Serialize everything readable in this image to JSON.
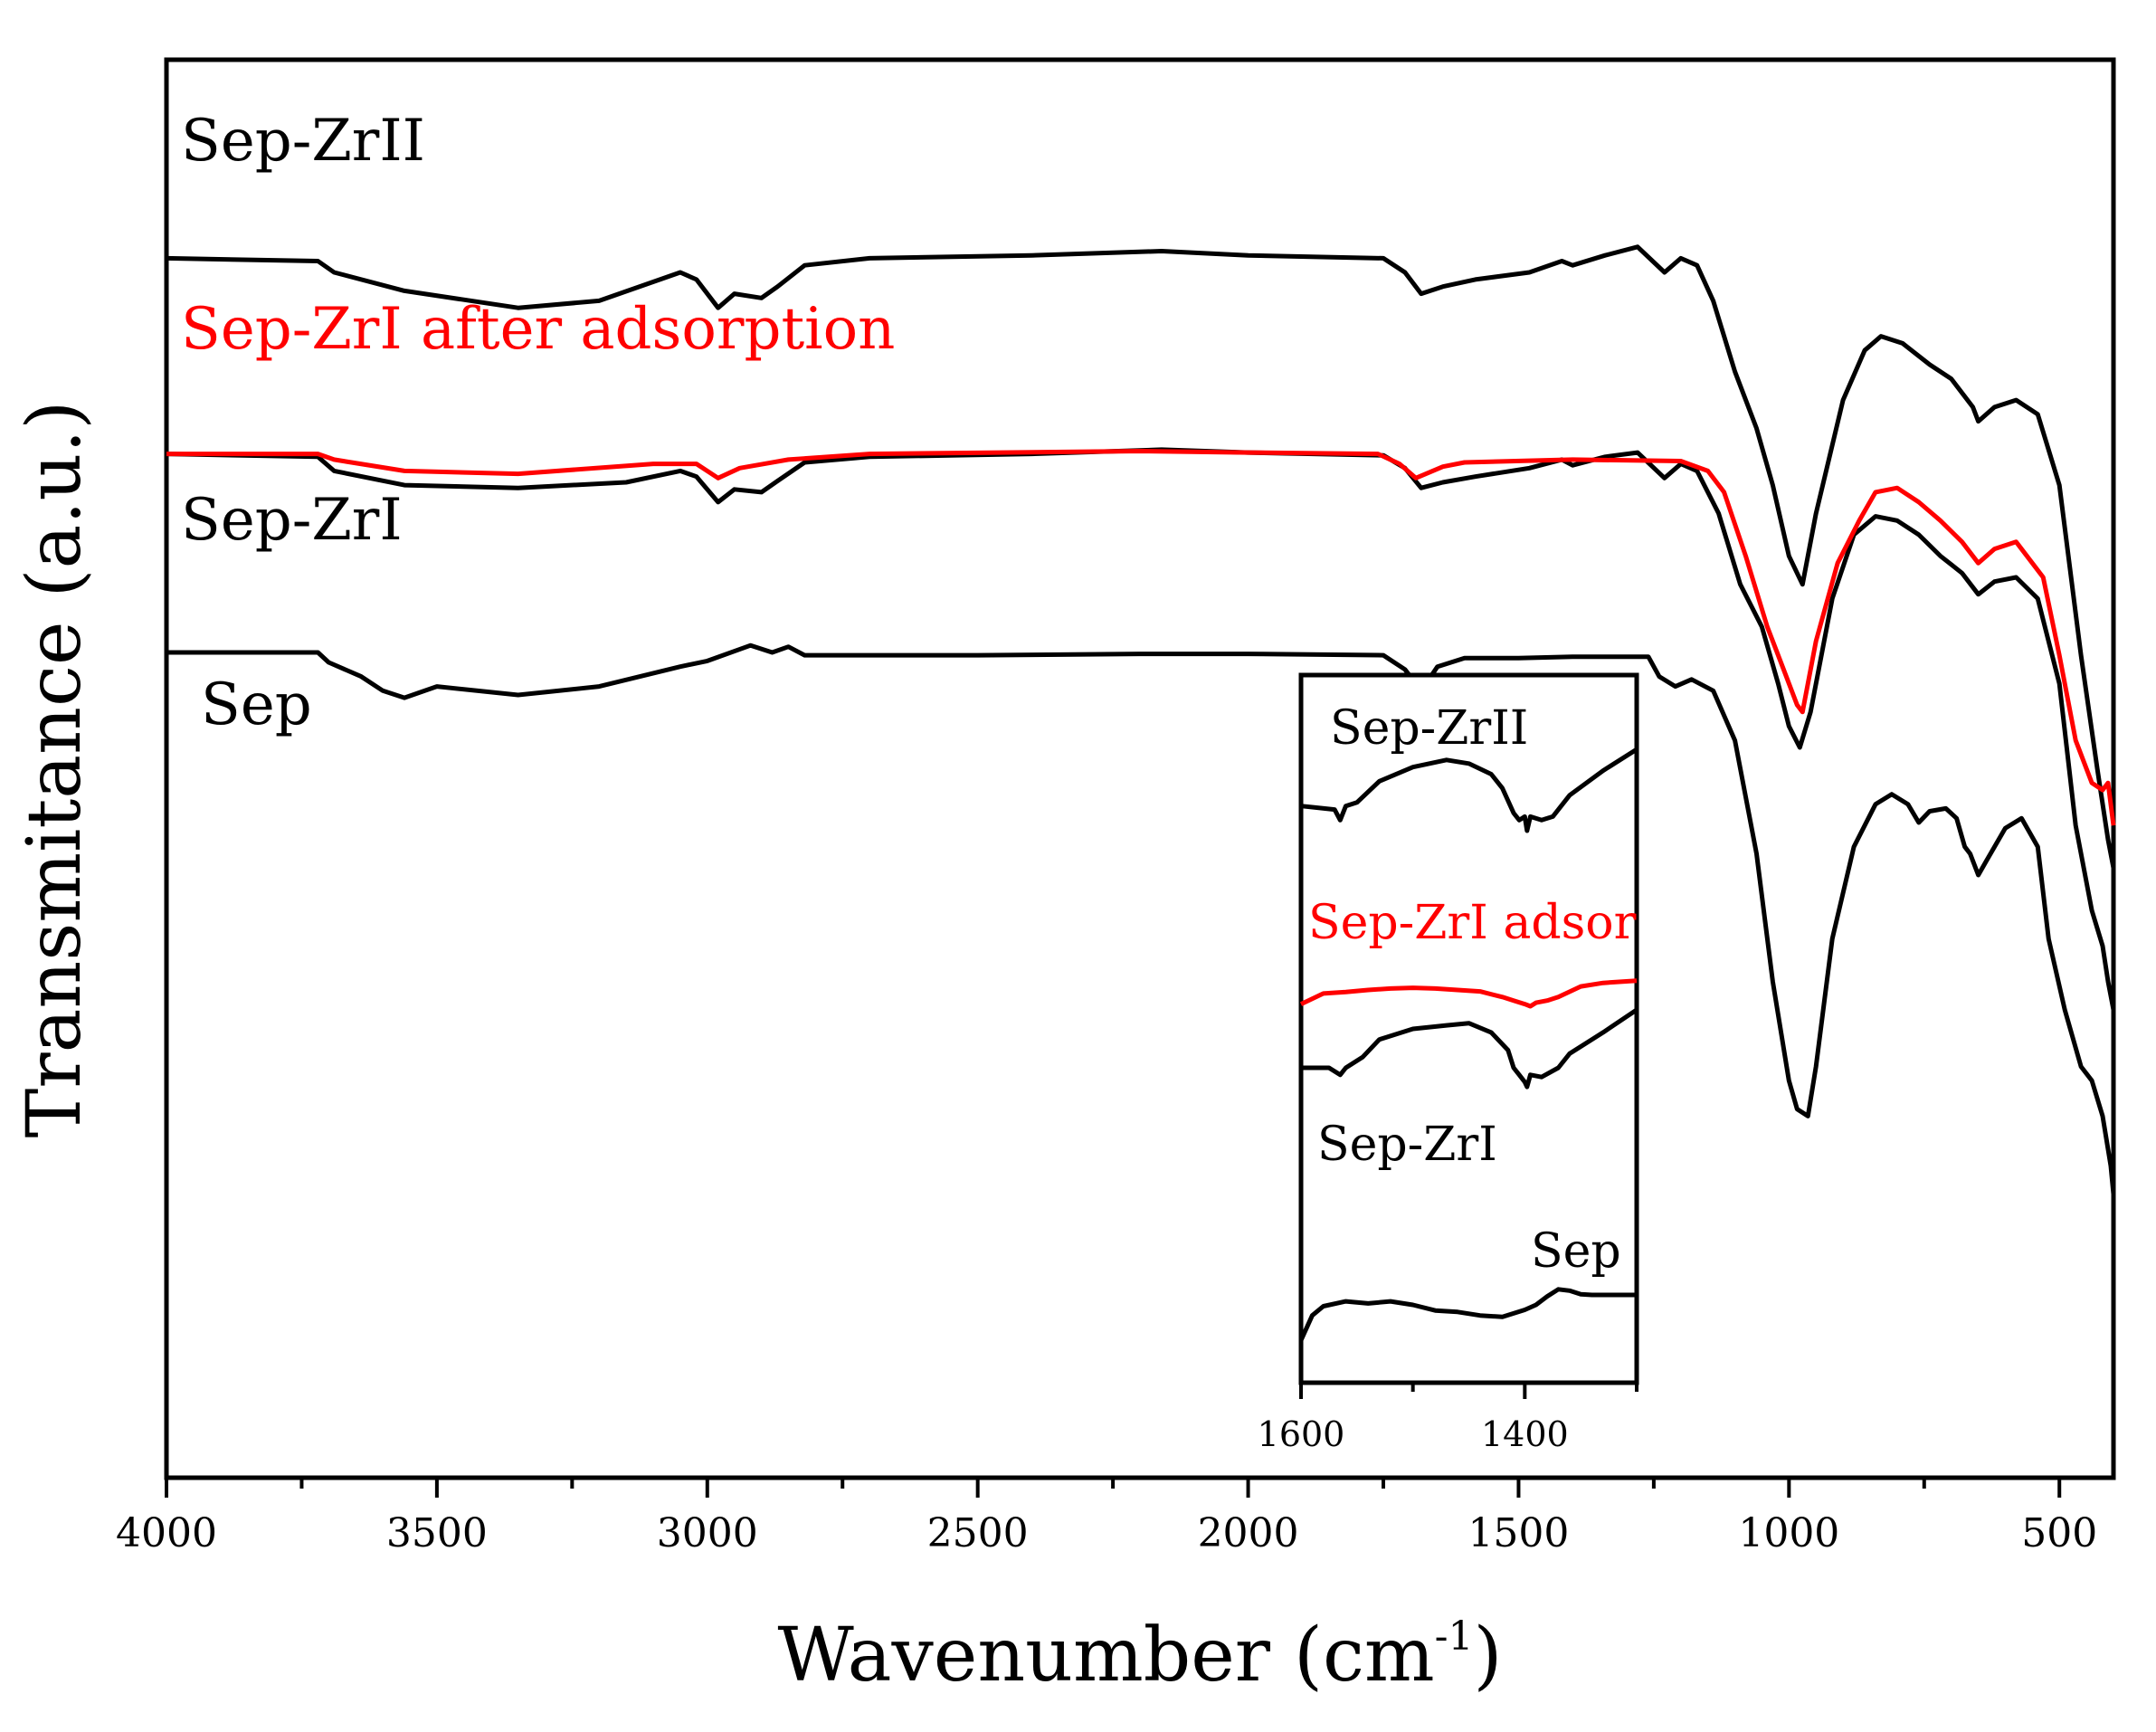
{
  "chart_data": {
    "type": "line",
    "title": "",
    "xlabel": "Wavenumber (cm",
    "xlabel_sup": "-1",
    "xlabel_close": ")",
    "ylabel": "Transmitance (a.u.)",
    "xlim": [
      4000,
      400
    ],
    "x_reversed": true,
    "y_ticks_shown": false,
    "ylim": [
      0,
      100
    ],
    "x_ticks": [
      4000,
      3500,
      3000,
      2500,
      2000,
      1500,
      1000,
      500
    ],
    "x_tick_labels": [
      "4000",
      "3500",
      "3000",
      "2500",
      "2000",
      "1500",
      "1000",
      "500"
    ],
    "colors": {
      "black": "#000000",
      "red": "#ff0000"
    },
    "series": [
      {
        "name": "Sep-ZrII",
        "color": "#000000",
        "points": [
          [
            4000,
            86
          ],
          [
            3720,
            85.8
          ],
          [
            3690,
            85
          ],
          [
            3560,
            83.7
          ],
          [
            3350,
            82.5
          ],
          [
            3200,
            83
          ],
          [
            3050,
            85
          ],
          [
            3020,
            84.5
          ],
          [
            2980,
            82.5
          ],
          [
            2950,
            83.5
          ],
          [
            2900,
            83.2
          ],
          [
            2870,
            84
          ],
          [
            2820,
            85.5
          ],
          [
            2700,
            86
          ],
          [
            2400,
            86.2
          ],
          [
            2160,
            86.5
          ],
          [
            2000,
            86.2
          ],
          [
            1750,
            86
          ],
          [
            1710,
            85
          ],
          [
            1680,
            83.5
          ],
          [
            1640,
            84
          ],
          [
            1580,
            84.5
          ],
          [
            1480,
            85
          ],
          [
            1420,
            85.8
          ],
          [
            1400,
            85.5
          ],
          [
            1340,
            86.2
          ],
          [
            1280,
            86.8
          ],
          [
            1230,
            85
          ],
          [
            1200,
            86
          ],
          [
            1170,
            85.5
          ],
          [
            1140,
            83
          ],
          [
            1100,
            78
          ],
          [
            1060,
            74
          ],
          [
            1030,
            70
          ],
          [
            1000,
            65
          ],
          [
            975,
            63
          ],
          [
            950,
            68
          ],
          [
            900,
            76
          ],
          [
            860,
            79.5
          ],
          [
            830,
            80.5
          ],
          [
            790,
            80
          ],
          [
            740,
            78.5
          ],
          [
            700,
            77.5
          ],
          [
            660,
            75.5
          ],
          [
            650,
            74.5
          ],
          [
            620,
            75.5
          ],
          [
            580,
            76
          ],
          [
            540,
            75
          ],
          [
            500,
            70
          ],
          [
            460,
            58
          ],
          [
            430,
            50
          ],
          [
            410,
            45
          ],
          [
            400,
            43
          ]
        ]
      },
      {
        "name": "Sep-ZrI after adsorption",
        "color": "#ff0000",
        "points": [
          [
            4000,
            72.2
          ],
          [
            3720,
            72.2
          ],
          [
            3690,
            71.8
          ],
          [
            3560,
            71
          ],
          [
            3350,
            70.8
          ],
          [
            3100,
            71.5
          ],
          [
            3020,
            71.5
          ],
          [
            2980,
            70.5
          ],
          [
            2940,
            71.2
          ],
          [
            2850,
            71.8
          ],
          [
            2700,
            72.2
          ],
          [
            2200,
            72.4
          ],
          [
            2000,
            72.3
          ],
          [
            1760,
            72.2
          ],
          [
            1720,
            71.5
          ],
          [
            1690,
            70.5
          ],
          [
            1640,
            71.3
          ],
          [
            1600,
            71.6
          ],
          [
            1400,
            71.8
          ],
          [
            1200,
            71.7
          ],
          [
            1150,
            71
          ],
          [
            1120,
            69.5
          ],
          [
            1080,
            65
          ],
          [
            1040,
            60
          ],
          [
            1010,
            57
          ],
          [
            985,
            54.5
          ],
          [
            975,
            54
          ],
          [
            950,
            59
          ],
          [
            910,
            64.5
          ],
          [
            870,
            67.5
          ],
          [
            840,
            69.5
          ],
          [
            800,
            69.8
          ],
          [
            760,
            68.8
          ],
          [
            720,
            67.5
          ],
          [
            680,
            66
          ],
          [
            650,
            64.5
          ],
          [
            620,
            65.5
          ],
          [
            580,
            66
          ],
          [
            530,
            63.5
          ],
          [
            500,
            58
          ],
          [
            470,
            52
          ],
          [
            440,
            49
          ],
          [
            420,
            48.5
          ],
          [
            410,
            49
          ],
          [
            400,
            46
          ]
        ]
      },
      {
        "name": "Sep-ZrI",
        "color": "#000000",
        "points": [
          [
            4000,
            72.2
          ],
          [
            3720,
            72
          ],
          [
            3690,
            71
          ],
          [
            3560,
            70
          ],
          [
            3350,
            69.8
          ],
          [
            3150,
            70.2
          ],
          [
            3050,
            71
          ],
          [
            3020,
            70.6
          ],
          [
            2980,
            68.8
          ],
          [
            2950,
            69.7
          ],
          [
            2900,
            69.5
          ],
          [
            2870,
            70.3
          ],
          [
            2820,
            71.6
          ],
          [
            2700,
            72
          ],
          [
            2400,
            72.2
          ],
          [
            2160,
            72.5
          ],
          [
            2000,
            72.3
          ],
          [
            1750,
            72.1
          ],
          [
            1710,
            71.2
          ],
          [
            1680,
            69.8
          ],
          [
            1640,
            70.2
          ],
          [
            1580,
            70.6
          ],
          [
            1480,
            71.2
          ],
          [
            1420,
            71.8
          ],
          [
            1400,
            71.4
          ],
          [
            1340,
            72
          ],
          [
            1280,
            72.3
          ],
          [
            1230,
            70.5
          ],
          [
            1200,
            71.5
          ],
          [
            1170,
            71
          ],
          [
            1130,
            68
          ],
          [
            1090,
            63
          ],
          [
            1050,
            60
          ],
          [
            1020,
            56
          ],
          [
            1000,
            53
          ],
          [
            980,
            51.5
          ],
          [
            960,
            54
          ],
          [
            920,
            62
          ],
          [
            880,
            66.5
          ],
          [
            840,
            67.8
          ],
          [
            800,
            67.5
          ],
          [
            760,
            66.5
          ],
          [
            720,
            65
          ],
          [
            680,
            63.8
          ],
          [
            650,
            62.3
          ],
          [
            620,
            63.2
          ],
          [
            580,
            63.5
          ],
          [
            540,
            62
          ],
          [
            500,
            56
          ],
          [
            470,
            46
          ],
          [
            440,
            40
          ],
          [
            420,
            37.5
          ],
          [
            410,
            35
          ],
          [
            400,
            33
          ]
        ]
      },
      {
        "name": "Sep",
        "color": "#000000",
        "points": [
          [
            4000,
            58.2
          ],
          [
            3720,
            58.2
          ],
          [
            3700,
            57.5
          ],
          [
            3640,
            56.5
          ],
          [
            3600,
            55.5
          ],
          [
            3560,
            55
          ],
          [
            3500,
            55.8
          ],
          [
            3350,
            55.2
          ],
          [
            3200,
            55.8
          ],
          [
            3050,
            57.2
          ],
          [
            3000,
            57.6
          ],
          [
            2920,
            58.7
          ],
          [
            2880,
            58.2
          ],
          [
            2850,
            58.6
          ],
          [
            2820,
            58
          ],
          [
            2500,
            58
          ],
          [
            2200,
            58.1
          ],
          [
            2000,
            58.1
          ],
          [
            1750,
            58
          ],
          [
            1710,
            57
          ],
          [
            1680,
            55.5
          ],
          [
            1650,
            57.2
          ],
          [
            1600,
            57.8
          ],
          [
            1500,
            57.8
          ],
          [
            1400,
            57.9
          ],
          [
            1260,
            57.9
          ],
          [
            1240,
            56.5
          ],
          [
            1210,
            55.8
          ],
          [
            1180,
            56.3
          ],
          [
            1140,
            55.5
          ],
          [
            1100,
            52
          ],
          [
            1060,
            44
          ],
          [
            1030,
            35
          ],
          [
            1000,
            28
          ],
          [
            985,
            26
          ],
          [
            965,
            25.5
          ],
          [
            950,
            29
          ],
          [
            920,
            38
          ],
          [
            880,
            44.5
          ],
          [
            840,
            47.5
          ],
          [
            810,
            48.2
          ],
          [
            780,
            47.5
          ],
          [
            760,
            46.2
          ],
          [
            740,
            47
          ],
          [
            710,
            47.2
          ],
          [
            690,
            46.5
          ],
          [
            675,
            44.5
          ],
          [
            665,
            44
          ],
          [
            650,
            42.5
          ],
          [
            635,
            43.5
          ],
          [
            600,
            45.8
          ],
          [
            570,
            46.5
          ],
          [
            540,
            44.5
          ],
          [
            520,
            38
          ],
          [
            490,
            33
          ],
          [
            460,
            29
          ],
          [
            440,
            28
          ],
          [
            420,
            25.5
          ],
          [
            405,
            22
          ],
          [
            400,
            20
          ]
        ]
      }
    ],
    "series_labels": [
      "Sep-ZrII",
      "Sep-ZrI after adsorption",
      "Sep-ZrI",
      "Sep"
    ],
    "inset": {
      "xlim": [
        1600,
        1300
      ],
      "x_ticks": [
        1600,
        1400
      ],
      "x_tick_labels": [
        "1600",
        "1400"
      ],
      "ylim": [
        0,
        100
      ],
      "series": [
        {
          "name": "Sep-ZrII",
          "color": "#000000",
          "points": [
            [
              1600,
              81.5
            ],
            [
              1570,
              81
            ],
            [
              1565,
              79.5
            ],
            [
              1560,
              81.5
            ],
            [
              1550,
              82
            ],
            [
              1530,
              85
            ],
            [
              1500,
              87
            ],
            [
              1470,
              88
            ],
            [
              1450,
              87.5
            ],
            [
              1430,
              86
            ],
            [
              1420,
              84
            ],
            [
              1410,
              80.5
            ],
            [
              1405,
              79.5
            ],
            [
              1400,
              80
            ],
            [
              1398,
              78
            ],
            [
              1395,
              80
            ],
            [
              1385,
              79.5
            ],
            [
              1375,
              80
            ],
            [
              1360,
              83
            ],
            [
              1330,
              86.5
            ],
            [
              1300,
              89.5
            ]
          ]
        },
        {
          "name": "Sep-ZrI adsor",
          "color": "#ff0000",
          "points": [
            [
              1600,
              53.5
            ],
            [
              1580,
              55
            ],
            [
              1560,
              55.2
            ],
            [
              1540,
              55.5
            ],
            [
              1520,
              55.7
            ],
            [
              1500,
              55.8
            ],
            [
              1480,
              55.7
            ],
            [
              1460,
              55.5
            ],
            [
              1440,
              55.3
            ],
            [
              1420,
              54.5
            ],
            [
              1410,
              54
            ],
            [
              1400,
              53.5
            ],
            [
              1395,
              53.2
            ],
            [
              1390,
              53.7
            ],
            [
              1380,
              54
            ],
            [
              1370,
              54.5
            ],
            [
              1350,
              56
            ],
            [
              1330,
              56.5
            ],
            [
              1300,
              56.8
            ]
          ]
        },
        {
          "name": "Sep-ZrI",
          "color": "#000000",
          "points": [
            [
              1600,
              44.5
            ],
            [
              1575,
              44.5
            ],
            [
              1565,
              43.5
            ],
            [
              1560,
              44.5
            ],
            [
              1545,
              46
            ],
            [
              1530,
              48.5
            ],
            [
              1500,
              50
            ],
            [
              1470,
              50.5
            ],
            [
              1450,
              50.8
            ],
            [
              1430,
              49.5
            ],
            [
              1415,
              47
            ],
            [
              1410,
              44.5
            ],
            [
              1405,
              43.5
            ],
            [
              1400,
              42.5
            ],
            [
              1398,
              41.8
            ],
            [
              1395,
              43.5
            ],
            [
              1385,
              43.2
            ],
            [
              1370,
              44.5
            ],
            [
              1360,
              46.5
            ],
            [
              1330,
              49.5
            ],
            [
              1300,
              52.7
            ]
          ]
        },
        {
          "name": "Sep",
          "color": "#000000",
          "points": [
            [
              1600,
              6
            ],
            [
              1590,
              9.5
            ],
            [
              1580,
              10.8
            ],
            [
              1560,
              11.5
            ],
            [
              1540,
              11.2
            ],
            [
              1520,
              11.5
            ],
            [
              1500,
              11
            ],
            [
              1480,
              10.2
            ],
            [
              1460,
              10
            ],
            [
              1440,
              9.5
            ],
            [
              1420,
              9.3
            ],
            [
              1400,
              10.3
            ],
            [
              1390,
              11
            ],
            [
              1380,
              12.2
            ],
            [
              1370,
              13.2
            ],
            [
              1360,
              13
            ],
            [
              1350,
              12.5
            ],
            [
              1340,
              12.4
            ],
            [
              1320,
              12.4
            ],
            [
              1300,
              12.4
            ]
          ]
        }
      ],
      "labels": [
        "Sep-ZrII",
        "Sep-ZrI adsor",
        "Sep-ZrI",
        "Sep"
      ]
    }
  }
}
